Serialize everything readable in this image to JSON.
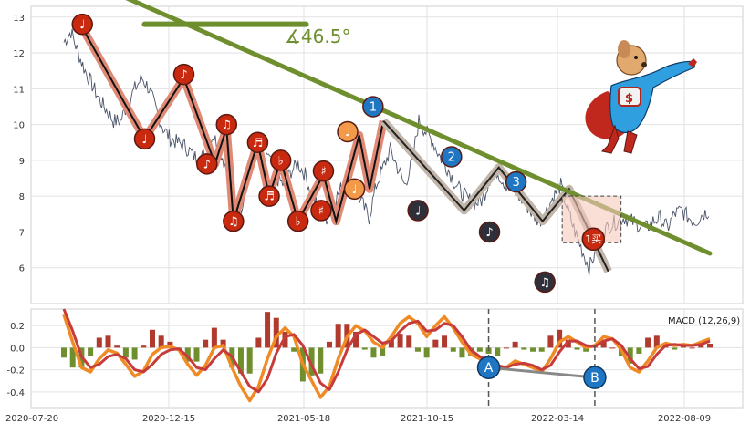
{
  "chart_data": [
    {
      "type": "line",
      "panel": "price",
      "ylim": [
        5.0,
        13.3
      ],
      "y_ticks": [
        6,
        7,
        8,
        9,
        10,
        11,
        12,
        13
      ],
      "grid": true,
      "series": [
        {
          "values_daily_sampled": [
            12.3,
            12.6,
            12.0,
            11.5,
            11.1,
            10.7,
            10.4,
            10.1,
            10.1,
            10.6,
            11.0,
            11.3,
            11.0,
            10.4,
            9.9,
            9.6,
            9.5,
            9.4,
            9.2,
            9.0,
            9.2,
            9.7,
            9.3,
            8.7,
            7.7,
            7.7,
            8.6,
            9.2,
            9.5,
            9.0,
            8.5,
            8.3,
            8.7,
            8.9,
            8.6,
            8.0,
            7.6,
            7.4,
            7.8,
            8.2,
            8.4,
            8.2,
            7.8,
            7.4,
            8.3,
            8.8,
            9.3,
            8.8,
            8.3,
            8.9,
            10.1,
            9.8,
            9.5,
            9.1,
            8.8,
            8.4,
            8.1,
            7.9,
            7.8,
            7.9,
            8.5,
            8.7,
            8.4,
            8.2,
            8.0,
            7.8,
            7.5,
            7.3,
            7.6,
            8.0,
            8.3,
            7.6,
            7.0,
            6.5,
            6.0,
            6.5,
            7.0,
            7.2,
            7.3,
            7.4,
            7.3,
            7.2,
            7.1,
            7.3,
            7.4,
            7.1,
            7.5,
            7.6,
            7.4,
            7.3,
            7.5,
            7.6
          ]
        }
      ],
      "zigzag_points": [
        {
          "date_index": 16,
          "value": 12.7
        },
        {
          "date_index": 70,
          "value": 9.6
        },
        {
          "date_index": 104,
          "value": 11.3
        },
        {
          "date_index": 131,
          "value": 8.9
        },
        {
          "date_index": 141,
          "value": 9.9
        },
        {
          "date_index": 147,
          "value": 7.3
        },
        {
          "date_index": 168,
          "value": 9.5
        },
        {
          "date_index": 178,
          "value": 8.0
        },
        {
          "date_index": 188,
          "value": 9.0
        },
        {
          "date_index": 203,
          "value": 7.3
        },
        {
          "date_index": 225,
          "value": 8.6
        },
        {
          "date_index": 236,
          "value": 7.3
        },
        {
          "date_index": 256,
          "value": 9.7
        },
        {
          "date_index": 265,
          "value": 8.2
        },
        {
          "date_index": 277,
          "value": 10.1
        },
        {
          "date_index": 347,
          "value": 7.6
        },
        {
          "date_index": 377,
          "value": 8.8
        },
        {
          "date_index": 415,
          "value": 7.3
        },
        {
          "date_index": 438,
          "value": 8.2
        },
        {
          "date_index": 472,
          "value": 5.9
        }
      ],
      "trendline": {
        "start": {
          "date_index": 0,
          "value": 14.3
        },
        "end": {
          "date_index": 560,
          "value": 6.4
        }
      },
      "resistance_segment": {
        "start": {
          "date_index": 70,
          "value": 12.8
        },
        "end": {
          "date_index": 210,
          "value": 12.8
        }
      },
      "angle_label": "∡46.5°",
      "markers": [
        {
          "label": "♩",
          "date_index": 16,
          "value": 12.8,
          "color": "#c8290f"
        },
        {
          "label": "♩",
          "date_index": 70,
          "value": 9.6,
          "color": "#c8290f"
        },
        {
          "label": "♪",
          "date_index": 104,
          "value": 11.4,
          "color": "#c8290f"
        },
        {
          "label": "♪",
          "date_index": 124,
          "value": 8.9,
          "color": "#c8290f"
        },
        {
          "label": "♫",
          "date_index": 141,
          "value": 10.0,
          "color": "#c8290f"
        },
        {
          "label": "♫",
          "date_index": 147,
          "value": 7.3,
          "color": "#c8290f"
        },
        {
          "label": "♬",
          "date_index": 168,
          "value": 9.5,
          "color": "#c8290f"
        },
        {
          "label": "♬",
          "date_index": 178,
          "value": 8.0,
          "color": "#c8290f"
        },
        {
          "label": "♭",
          "date_index": 188,
          "value": 9.0,
          "color": "#c8290f"
        },
        {
          "label": "♭",
          "date_index": 203,
          "value": 7.3,
          "color": "#c8290f"
        },
        {
          "label": "♯",
          "date_index": 225,
          "value": 8.7,
          "color": "#c8290f"
        },
        {
          "label": "♯",
          "date_index": 223,
          "value": 7.6,
          "color": "#c8290f"
        },
        {
          "label": "♩",
          "date_index": 246,
          "value": 9.8,
          "color": "#f29a4a"
        },
        {
          "label": "♩",
          "date_index": 252,
          "value": 8.2,
          "color": "#f29a4a"
        },
        {
          "label": "1",
          "date_index": 268,
          "value": 10.5,
          "color": "#1f77c4"
        },
        {
          "label": "2",
          "date_index": 336,
          "value": 9.1,
          "color": "#1f77c4"
        },
        {
          "label": "3",
          "date_index": 392,
          "value": 8.4,
          "color": "#1f77c4"
        },
        {
          "label": "♩",
          "date_index": 307,
          "value": 7.6,
          "color": "#2f2f3a"
        },
        {
          "label": "♪",
          "date_index": 369,
          "value": 7.0,
          "color": "#2f2f3a"
        },
        {
          "label": "♫",
          "date_index": 417,
          "value": 5.6,
          "color": "#2f2f3a"
        }
      ],
      "box": {
        "start_date_index": 432,
        "end_date_index": 483,
        "low": 6.7,
        "high": 8.0
      },
      "box_marker": {
        "label": "1买",
        "date_index": 459,
        "value": 6.8,
        "color": "#c8290f"
      }
    },
    {
      "type": "bar",
      "panel": "macd",
      "legend_label": "MACD (12,26,9)",
      "ylim": [
        -0.55,
        0.35
      ],
      "y_ticks": [
        -0.4,
        -0.2,
        0.0,
        0.2
      ],
      "y_tick_labels": [
        "-0.4",
        "-0.2",
        "0.0",
        "0.2"
      ],
      "x_tick_labels": [
        "2020-07-20",
        "2020-12-15",
        "2021-05-18",
        "2021-10-15",
        "2022-03-14",
        "2022-08-09"
      ],
      "dif": [
        0.3,
        0.05,
        -0.18,
        -0.22,
        -0.1,
        -0.02,
        -0.05,
        -0.15,
        -0.26,
        -0.21,
        -0.06,
        0.0,
        0.01,
        -0.02,
        -0.15,
        -0.25,
        -0.16,
        0.0,
        0.02,
        -0.18,
        -0.35,
        -0.48,
        -0.35,
        -0.1,
        0.1,
        0.18,
        0.1,
        -0.15,
        -0.3,
        -0.45,
        -0.35,
        -0.1,
        0.1,
        0.2,
        0.15,
        0.05,
        0.0,
        0.1,
        0.22,
        0.28,
        0.22,
        0.1,
        0.2,
        0.28,
        0.18,
        0.05,
        -0.06,
        -0.1,
        -0.15,
        -0.2,
        -0.18,
        -0.12,
        -0.15,
        -0.18,
        -0.22,
        -0.1,
        0.05,
        0.1,
        0.05,
        0.0,
        0.02,
        0.1,
        0.08,
        -0.02,
        -0.18,
        -0.22,
        -0.12,
        0.0,
        0.04,
        0.02,
        0.03,
        0.02,
        0.05,
        0.08
      ],
      "dea": [
        0.35,
        0.15,
        -0.08,
        -0.18,
        -0.15,
        -0.08,
        -0.06,
        -0.1,
        -0.2,
        -0.22,
        -0.15,
        -0.06,
        -0.02,
        -0.01,
        -0.08,
        -0.18,
        -0.2,
        -0.1,
        -0.02,
        -0.08,
        -0.22,
        -0.35,
        -0.4,
        -0.28,
        -0.05,
        0.1,
        0.12,
        0.02,
        -0.16,
        -0.32,
        -0.38,
        -0.22,
        -0.02,
        0.12,
        0.16,
        0.1,
        0.04,
        0.06,
        0.15,
        0.22,
        0.24,
        0.15,
        0.16,
        0.22,
        0.2,
        0.1,
        -0.02,
        -0.08,
        -0.12,
        -0.16,
        -0.18,
        -0.15,
        -0.14,
        -0.16,
        -0.2,
        -0.16,
        -0.04,
        0.06,
        0.06,
        0.02,
        0.01,
        0.06,
        0.08,
        0.02,
        -0.1,
        -0.19,
        -0.17,
        -0.06,
        0.02,
        0.03,
        0.02,
        0.02,
        0.03,
        0.06
      ],
      "divergence_labels": [
        {
          "label": "A",
          "index": 48,
          "value": -0.18
        },
        {
          "label": "B",
          "index": 60,
          "value": -0.27
        }
      ],
      "vertical_markers_index": [
        48,
        60
      ]
    }
  ]
}
